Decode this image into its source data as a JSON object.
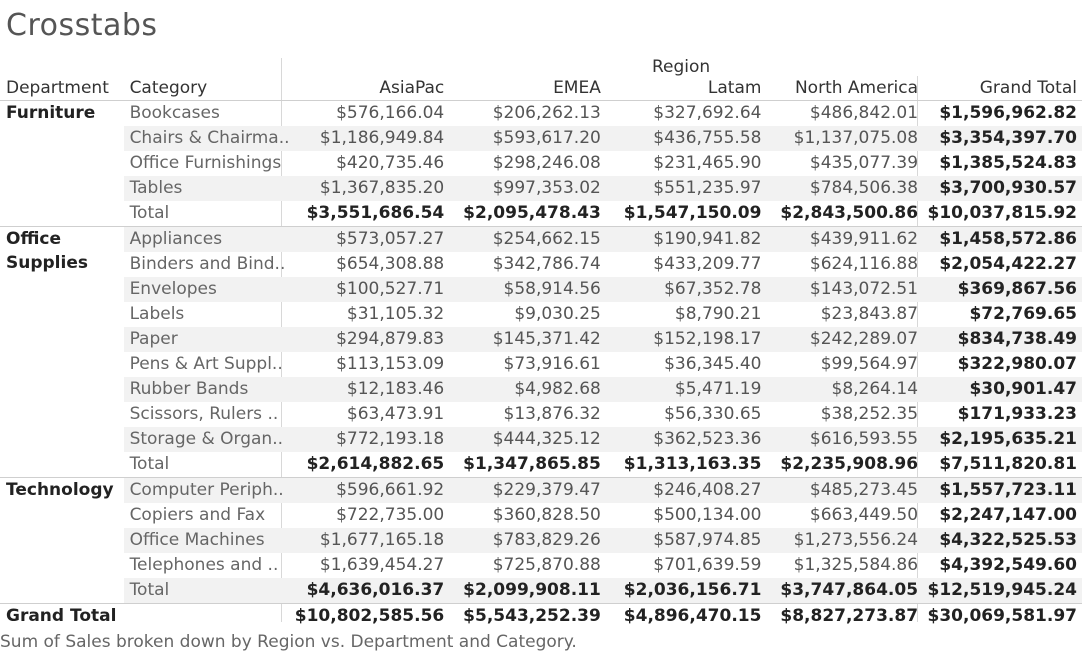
{
  "title": "Crosstabs",
  "region_label": "Region",
  "headers": {
    "department": "Department",
    "category": "Category",
    "regions": [
      "AsiaPac",
      "EMEA",
      "Latam",
      "North America"
    ],
    "grand_total": "Grand Total"
  },
  "departments": [
    {
      "name": "Furniture",
      "rows": [
        {
          "category": "Bookcases",
          "values": [
            "$576,166.04",
            "$206,262.13",
            "$327,692.64",
            "$486,842.01"
          ],
          "total": "$1,596,962.82"
        },
        {
          "category": "Chairs & Chairma..",
          "values": [
            "$1,186,949.84",
            "$593,617.20",
            "$436,755.58",
            "$1,137,075.08"
          ],
          "total": "$3,354,397.70"
        },
        {
          "category": "Office Furnishings",
          "values": [
            "$420,735.46",
            "$298,246.08",
            "$231,465.90",
            "$435,077.39"
          ],
          "total": "$1,385,524.83"
        },
        {
          "category": "Tables",
          "values": [
            "$1,367,835.20",
            "$997,353.02",
            "$551,235.97",
            "$784,506.38"
          ],
          "total": "$3,700,930.57"
        }
      ],
      "total_label": "Total",
      "totals": [
        "$3,551,686.54",
        "$2,095,478.43",
        "$1,547,150.09",
        "$2,843,500.86"
      ],
      "grand": "$10,037,815.92"
    },
    {
      "name": "Office Supplies",
      "rows": [
        {
          "category": "Appliances",
          "values": [
            "$573,057.27",
            "$254,662.15",
            "$190,941.82",
            "$439,911.62"
          ],
          "total": "$1,458,572.86"
        },
        {
          "category": "Binders and Bind..",
          "values": [
            "$654,308.88",
            "$342,786.74",
            "$433,209.77",
            "$624,116.88"
          ],
          "total": "$2,054,422.27"
        },
        {
          "category": "Envelopes",
          "values": [
            "$100,527.71",
            "$58,914.56",
            "$67,352.78",
            "$143,072.51"
          ],
          "total": "$369,867.56"
        },
        {
          "category": "Labels",
          "values": [
            "$31,105.32",
            "$9,030.25",
            "$8,790.21",
            "$23,843.87"
          ],
          "total": "$72,769.65"
        },
        {
          "category": "Paper",
          "values": [
            "$294,879.83",
            "$145,371.42",
            "$152,198.17",
            "$242,289.07"
          ],
          "total": "$834,738.49"
        },
        {
          "category": "Pens & Art Suppl..",
          "values": [
            "$113,153.09",
            "$73,916.61",
            "$36,345.40",
            "$99,564.97"
          ],
          "total": "$322,980.07"
        },
        {
          "category": "Rubber Bands",
          "values": [
            "$12,183.46",
            "$4,982.68",
            "$5,471.19",
            "$8,264.14"
          ],
          "total": "$30,901.47"
        },
        {
          "category": "Scissors, Rulers ..",
          "values": [
            "$63,473.91",
            "$13,876.32",
            "$56,330.65",
            "$38,252.35"
          ],
          "total": "$171,933.23"
        },
        {
          "category": "Storage & Organ..",
          "values": [
            "$772,193.18",
            "$444,325.12",
            "$362,523.36",
            "$616,593.55"
          ],
          "total": "$2,195,635.21"
        }
      ],
      "total_label": "Total",
      "totals": [
        "$2,614,882.65",
        "$1,347,865.85",
        "$1,313,163.35",
        "$2,235,908.96"
      ],
      "grand": "$7,511,820.81"
    },
    {
      "name": "Technology",
      "rows": [
        {
          "category": "Computer Periph..",
          "values": [
            "$596,661.92",
            "$229,379.47",
            "$246,408.27",
            "$485,273.45"
          ],
          "total": "$1,557,723.11"
        },
        {
          "category": "Copiers and Fax",
          "values": [
            "$722,735.00",
            "$360,828.50",
            "$500,134.00",
            "$663,449.50"
          ],
          "total": "$2,247,147.00"
        },
        {
          "category": "Office Machines",
          "values": [
            "$1,677,165.18",
            "$783,829.26",
            "$587,974.85",
            "$1,273,556.24"
          ],
          "total": "$4,322,525.53"
        },
        {
          "category": "Telephones and ..",
          "values": [
            "$1,639,454.27",
            "$725,870.88",
            "$701,639.59",
            "$1,325,584.86"
          ],
          "total": "$4,392,549.60"
        }
      ],
      "total_label": "Total",
      "totals": [
        "$4,636,016.37",
        "$2,099,908.11",
        "$2,036,156.71",
        "$3,747,864.05"
      ],
      "grand": "$12,519,945.24"
    }
  ],
  "grand_total_row": {
    "label": "Grand Total",
    "values": [
      "$10,802,585.56",
      "$5,543,252.39",
      "$4,896,470.15",
      "$8,827,273.87"
    ],
    "grand": "$30,069,581.97"
  },
  "caption": "Sum of Sales broken down by Region vs. Department and Category."
}
